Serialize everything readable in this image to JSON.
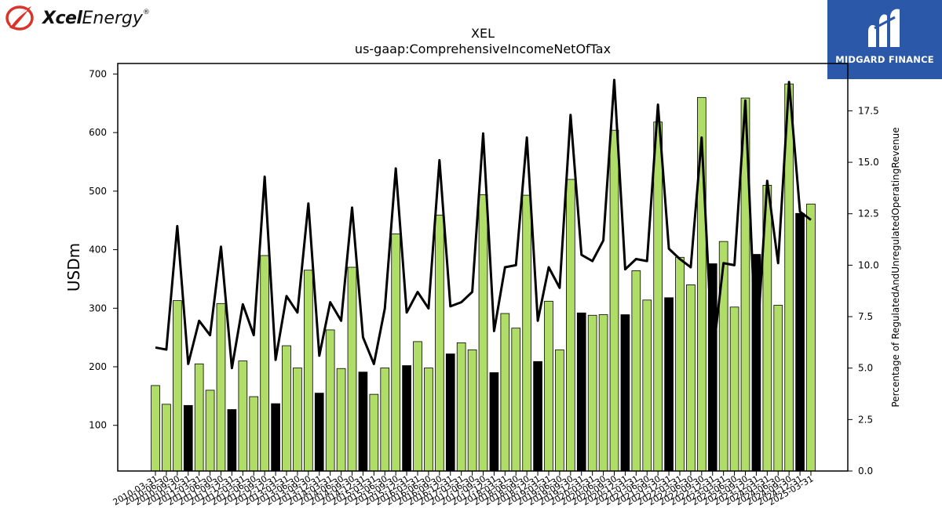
{
  "logos": {
    "xcel": {
      "brand_bold": "Xcel",
      "brand_rest": "Energy",
      "trademark": "®",
      "mark_color": "#d9332a"
    },
    "midgard": {
      "text": "MIDGARD FINANCE",
      "background": "#2b58a8"
    }
  },
  "chart_data": {
    "type": "bar",
    "title": "XEL",
    "subtitle": "us-gaap:ComprehensiveIncomeNetOfTax",
    "ylabel": "USDm",
    "y2label": "Percentage of RegulatedAndUnregulatedOperatingRevenue",
    "ylim": [
      22,
      718
    ],
    "y2lim": [
      0,
      19.8
    ],
    "yticks": [
      100,
      200,
      300,
      400,
      500,
      600,
      700
    ],
    "y2ticks": [
      "0.0",
      "2.5",
      "5.0",
      "7.5",
      "10.0",
      "12.5",
      "15.0",
      "17.5"
    ],
    "legend": "none",
    "grid": false,
    "colors": {
      "bar_normal": "#b0dc68",
      "bar_highlight": "#000000",
      "line": "#000000"
    },
    "categories": [
      "2010-03-31",
      "2010-06-30",
      "2010-09-30",
      "2010-12-31",
      "2011-03-31",
      "2011-06-30",
      "2011-09-30",
      "2011-12-31",
      "2012-03-31",
      "2012-06-30",
      "2012-09-30",
      "2012-12-31",
      "2013-03-31",
      "2013-06-30",
      "2013-09-30",
      "2013-12-31",
      "2014-03-31",
      "2014-06-30",
      "2014-09-30",
      "2014-12-31",
      "2015-03-31",
      "2015-06-30",
      "2015-09-30",
      "2015-12-31",
      "2016-03-31",
      "2016-06-30",
      "2016-09-30",
      "2016-12-31",
      "2017-03-31",
      "2017-06-30",
      "2017-09-30",
      "2017-12-31",
      "2018-03-31",
      "2018-06-30",
      "2018-09-30",
      "2018-12-31",
      "2019-03-31",
      "2019-06-30",
      "2019-09-30",
      "2019-12-31",
      "2020-03-31",
      "2020-06-30",
      "2020-09-30",
      "2020-12-31",
      "2021-03-31",
      "2021-06-30",
      "2021-09-30",
      "2021-12-31",
      "2022-03-31",
      "2022-06-30",
      "2022-09-30",
      "2022-12-31",
      "2023-03-31",
      "2023-06-30",
      "2023-09-30",
      "2023-12-31",
      "2024-03-31",
      "2024-06-30",
      "2024-09-30",
      "2024-12-31",
      "2025-03-31"
    ],
    "series": [
      {
        "kind": "bar",
        "values": [
          168,
          136,
          313,
          134,
          205,
          160,
          308,
          127,
          210,
          149,
          390,
          137,
          236,
          198,
          365,
          155,
          263,
          197,
          370,
          191,
          153,
          198,
          427,
          202,
          243,
          198,
          459,
          222,
          241,
          229,
          494,
          190,
          291,
          266,
          493,
          209,
          312,
          229,
          520,
          292,
          288,
          289,
          604,
          289,
          364,
          314,
          618,
          318,
          387,
          340,
          660,
          376,
          414,
          302,
          659,
          392,
          510,
          305,
          683,
          462,
          478
        ],
        "highlight": [
          false,
          false,
          false,
          true,
          false,
          false,
          false,
          true,
          false,
          false,
          false,
          true,
          false,
          false,
          false,
          true,
          false,
          false,
          false,
          true,
          false,
          false,
          false,
          true,
          false,
          false,
          false,
          true,
          false,
          false,
          false,
          true,
          false,
          false,
          false,
          true,
          false,
          false,
          false,
          true,
          false,
          false,
          false,
          true,
          false,
          false,
          false,
          true,
          false,
          false,
          false,
          true,
          false,
          false,
          false,
          true,
          false,
          false,
          false,
          true,
          false
        ]
      },
      {
        "kind": "line",
        "axis": "right",
        "values": [
          6.0,
          5.9,
          11.9,
          5.2,
          7.3,
          6.6,
          10.9,
          5.0,
          8.1,
          6.6,
          14.3,
          5.4,
          8.5,
          7.7,
          13.0,
          5.6,
          8.2,
          7.3,
          12.8,
          6.5,
          5.2,
          7.9,
          14.7,
          7.7,
          8.7,
          7.9,
          15.1,
          8.0,
          8.2,
          8.7,
          16.4,
          6.8,
          9.9,
          10.0,
          16.2,
          7.3,
          9.9,
          8.9,
          17.3,
          10.5,
          10.2,
          11.2,
          19.0,
          9.8,
          10.3,
          10.2,
          17.8,
          10.8,
          10.3,
          9.9,
          16.2,
          5.5,
          10.1,
          10.0,
          18.0,
          5.6,
          14.1,
          10.1,
          18.9,
          12.6,
          12.2
        ]
      }
    ]
  }
}
